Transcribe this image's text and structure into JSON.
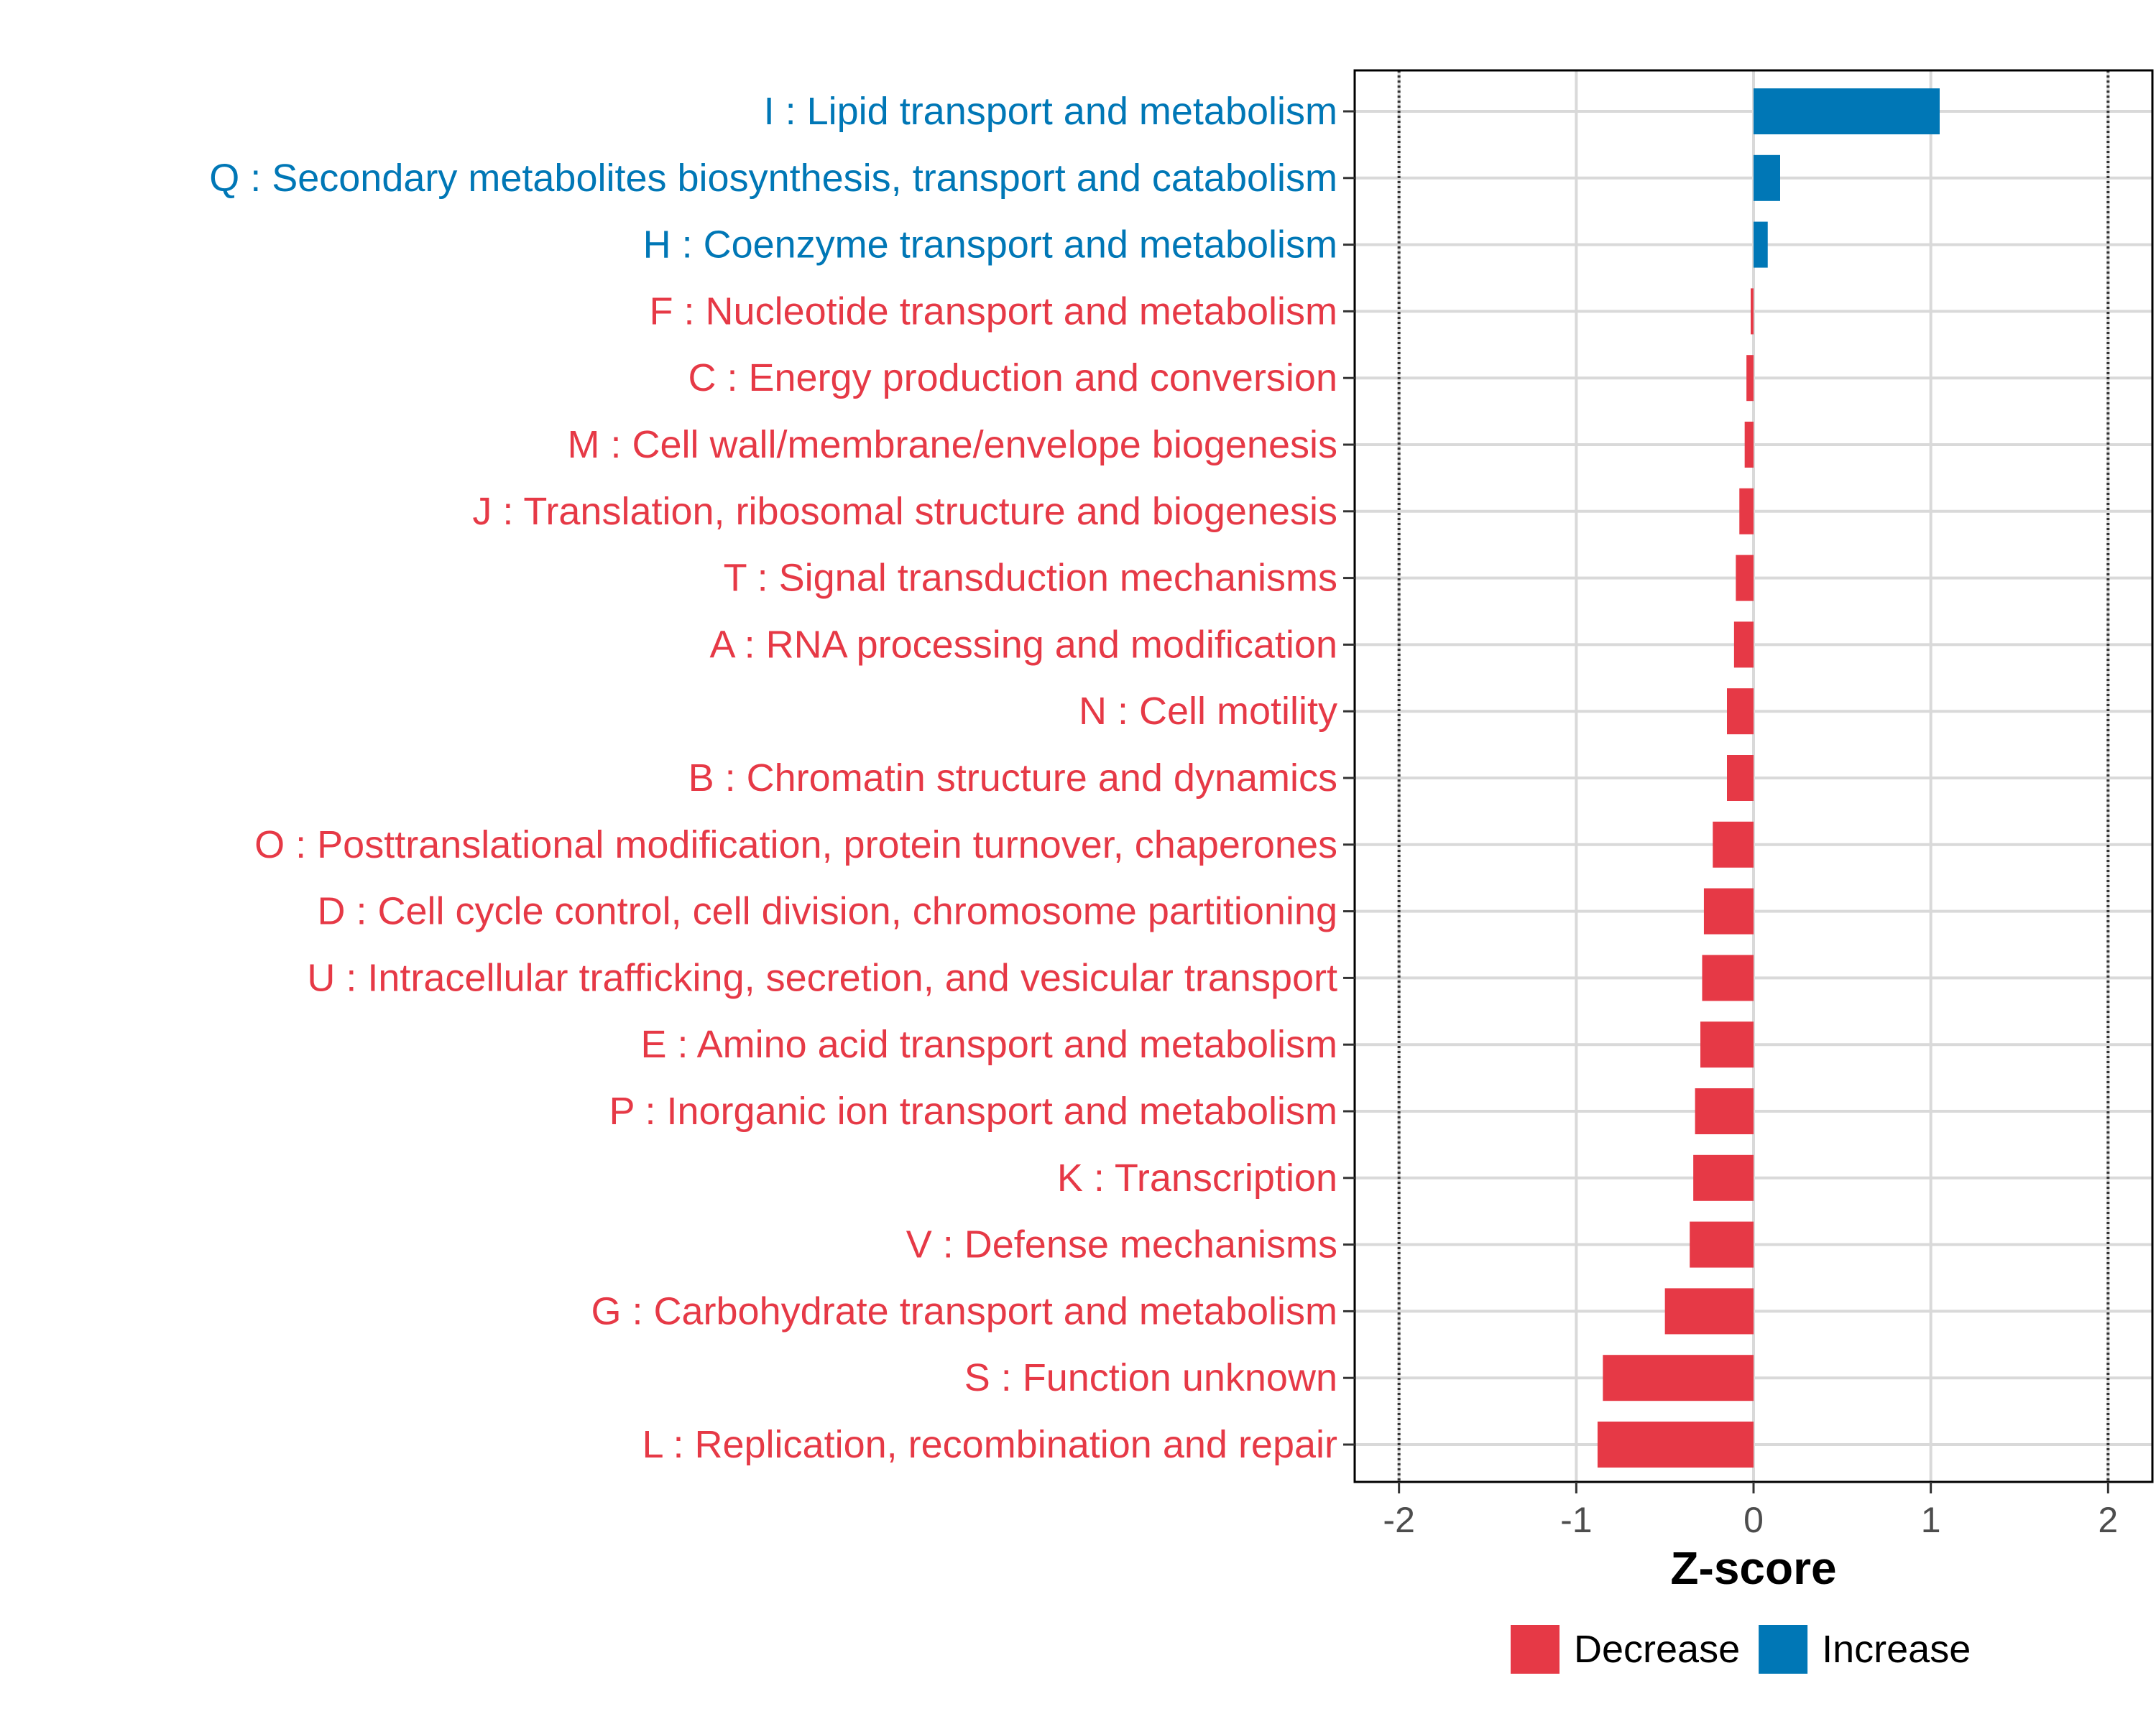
{
  "chart_data": {
    "type": "bar",
    "orientation": "horizontal",
    "xlabel": "Z-score",
    "ylabel": "",
    "xlim": [
      -2.25,
      2.25
    ],
    "x_ticks": [
      -2,
      -1,
      0,
      1,
      2
    ],
    "x_tick_labels": [
      "-2",
      "-1",
      "0",
      "1",
      "2"
    ],
    "reference_lines": [
      -2,
      2
    ],
    "grid": true,
    "legend": {
      "placement": "bottom",
      "entries": [
        {
          "label": "Decrease",
          "color": "#E63946"
        },
        {
          "label": "Increase",
          "color": "#0077B6"
        }
      ]
    },
    "categories": [
      "I : Lipid transport and metabolism",
      "Q : Secondary metabolites biosynthesis, transport and catabolism",
      "H : Coenzyme transport and metabolism",
      "F : Nucleotide transport and metabolism",
      "C : Energy production and conversion",
      "M : Cell wall/membrane/envelope biogenesis",
      "J : Translation, ribosomal structure and biogenesis",
      "T : Signal transduction mechanisms",
      "A : RNA processing and modification",
      "N : Cell motility",
      "B : Chromatin structure and dynamics",
      "O : Posttranslational modification, protein turnover, chaperones",
      "D : Cell cycle control, cell division, chromosome partitioning",
      "U : Intracellular trafficking, secretion, and vesicular transport",
      "E : Amino acid transport and metabolism",
      "P : Inorganic ion transport and metabolism",
      "K : Transcription",
      "V : Defense mechanisms",
      "G : Carbohydrate transport and metabolism",
      "S : Function unknown",
      "L : Replication, recombination and repair"
    ],
    "values": [
      1.05,
      0.15,
      0.08,
      -0.01,
      -0.04,
      -0.05,
      -0.08,
      -0.1,
      -0.11,
      -0.15,
      -0.15,
      -0.23,
      -0.28,
      -0.29,
      -0.3,
      -0.33,
      -0.34,
      -0.36,
      -0.5,
      -0.85,
      -0.88
    ],
    "direction": [
      "Increase",
      "Increase",
      "Increase",
      "Decrease",
      "Decrease",
      "Decrease",
      "Decrease",
      "Decrease",
      "Decrease",
      "Decrease",
      "Decrease",
      "Decrease",
      "Decrease",
      "Decrease",
      "Decrease",
      "Decrease",
      "Decrease",
      "Decrease",
      "Decrease",
      "Decrease",
      "Decrease"
    ]
  }
}
